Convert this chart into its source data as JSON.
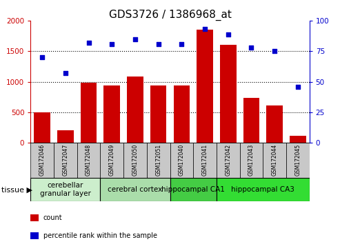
{
  "title": "GDS3726 / 1386968_at",
  "samples": [
    "GSM172046",
    "GSM172047",
    "GSM172048",
    "GSM172049",
    "GSM172050",
    "GSM172051",
    "GSM172040",
    "GSM172041",
    "GSM172042",
    "GSM172043",
    "GSM172044",
    "GSM172045"
  ],
  "counts": [
    500,
    200,
    980,
    940,
    1090,
    940,
    940,
    1850,
    1600,
    730,
    610,
    110
  ],
  "percentiles": [
    70,
    57,
    82,
    81,
    85,
    81,
    81,
    93,
    89,
    78,
    75,
    46
  ],
  "bar_color": "#cc0000",
  "dot_color": "#0000cc",
  "left_ylim": [
    0,
    2000
  ],
  "right_ylim": [
    0,
    100
  ],
  "left_yticks": [
    0,
    500,
    1000,
    1500,
    2000
  ],
  "right_yticks": [
    0,
    25,
    50,
    75,
    100
  ],
  "grid_values": [
    500,
    1000,
    1500
  ],
  "tissue_groups": [
    {
      "label": "cerebellar\ngranular layer",
      "start": 0,
      "end": 2,
      "color": "#cceecc"
    },
    {
      "label": "cerebral cortex",
      "start": 3,
      "end": 5,
      "color": "#aaddaa"
    },
    {
      "label": "hippocampal CA1",
      "start": 6,
      "end": 7,
      "color": "#44cc44"
    },
    {
      "label": "hippocampal CA3",
      "start": 8,
      "end": 11,
      "color": "#33dd33"
    }
  ],
  "legend_count_color": "#cc0000",
  "legend_pct_color": "#0000cc",
  "left_axis_color": "#cc0000",
  "right_axis_color": "#0000cc",
  "title_fontsize": 11,
  "tick_fontsize": 7.5,
  "sample_fontsize": 5.5,
  "tissue_fontsize": 7.5,
  "legend_fontsize": 7
}
